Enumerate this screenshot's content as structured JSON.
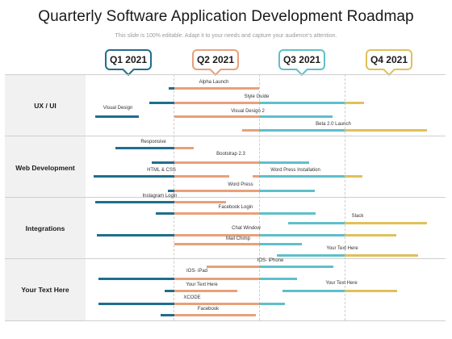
{
  "title": "Quarterly Software Application Development Roadmap",
  "subtitle": "This slide is 100% editable. Adapt it to your needs and capture your audience's attention.",
  "colors": {
    "navy": "#1f6e8c",
    "orange": "#e8a07a",
    "teal": "#5fbfc9",
    "gold": "#e0c05a"
  },
  "quarters": [
    {
      "label": "Q1 2021",
      "color": "#1f6e8c"
    },
    {
      "label": "Q2 2021",
      "color": "#e8a07a"
    },
    {
      "label": "Q3 2021",
      "color": "#5fbfc9"
    },
    {
      "label": "Q4 2021",
      "color": "#e0c05a"
    }
  ],
  "rows": [
    {
      "label": "UX / UI"
    },
    {
      "label": "Web Development"
    },
    {
      "label": "Integrations"
    },
    {
      "label": "Your Text Here"
    }
  ],
  "tasks": [
    "Alpha Launch",
    "Style Guide",
    "Visual Design",
    "Visual Design 2",
    "Beta 2.0 Launch",
    "Responsive",
    "Bootstrap 2.3",
    "HTML & CSS",
    "Word Press Installation",
    "Word Press",
    "Instagram Login",
    "Facebook Login",
    "Slack",
    "Chat Window",
    "Mail Chimp",
    "Your Text Here",
    "IOS- iPhone",
    "IOS- iPad",
    "Your Text Here",
    "Your Text Here",
    "XCODE",
    "Facebook"
  ]
}
